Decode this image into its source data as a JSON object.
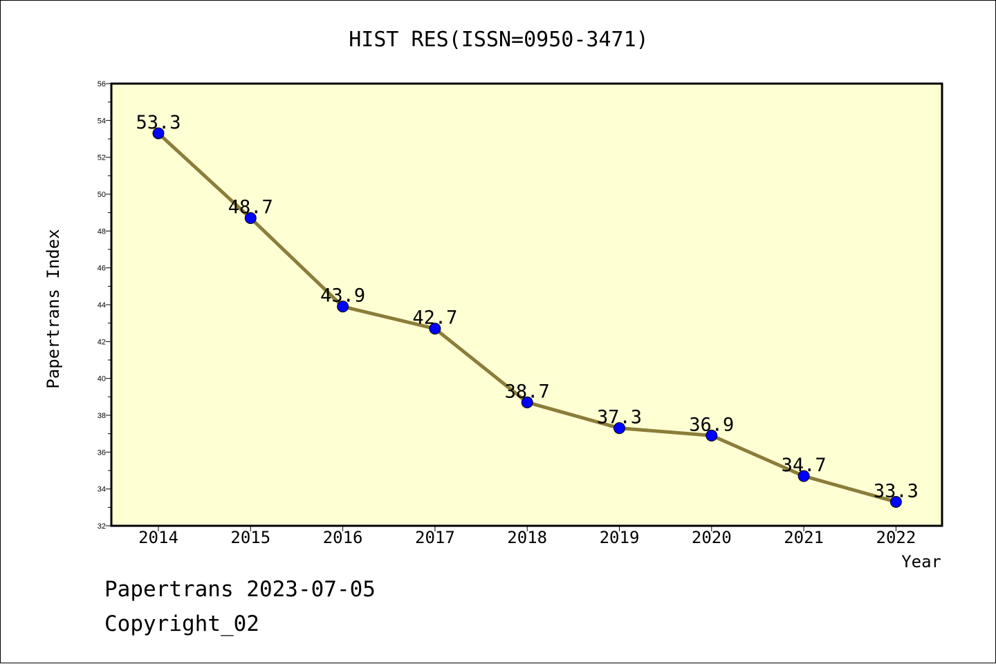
{
  "chart_data": {
    "type": "line",
    "title": "HIST RES(ISSN=0950-3471)",
    "xlabel": "Year",
    "ylabel": "Papertrans Index",
    "categories": [
      "2014",
      "2015",
      "2016",
      "2017",
      "2018",
      "2019",
      "2020",
      "2021",
      "2022"
    ],
    "series": [
      {
        "values": [
          53.3,
          48.7,
          43.9,
          42.7,
          38.7,
          37.3,
          36.9,
          34.7,
          33.3
        ],
        "labels": [
          "53.3",
          "48.7",
          "43.9",
          "42.7",
          "38.7",
          "37.3",
          "36.9",
          "34.7",
          "33.3"
        ]
      }
    ],
    "ylim": [
      32,
      56
    ],
    "yticks": [
      "32",
      "34",
      "36",
      "38",
      "40",
      "42",
      "44",
      "46",
      "48",
      "50",
      "52",
      "54",
      "56"
    ],
    "grid": false,
    "legend": "none",
    "colors": {
      "plot_background": "#ffffd4",
      "line": "#8b7d3a",
      "marker": "#0000ff"
    }
  },
  "footer": {
    "line1": "Papertrans 2023-07-05",
    "line2": "Copyright_02"
  }
}
